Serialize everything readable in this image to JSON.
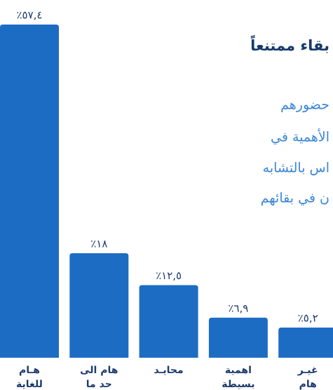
{
  "chart_data": {
    "type": "bar",
    "title": "بقاء ممتنعاً",
    "annotations": [
      "حضورهم",
      "الأهمية في",
      "اس بالتشابه",
      "ن في بقائهم"
    ],
    "categories": [
      [
        "هـام",
        "للغاية"
      ],
      [
        "هام الى",
        "حد ما"
      ],
      [
        "محايـد"
      ],
      [
        "اهمية",
        "بسيطة"
      ],
      [
        "غيـر",
        "هام"
      ]
    ],
    "values": [
      57.4,
      18,
      12.5,
      6.9,
      5.2
    ],
    "value_labels": [
      "٪٥٧,٤",
      "٪١٨",
      "٪١٢,٥",
      "٪٦,٩",
      "٪٥,٢"
    ],
    "color": "#1d6cc4"
  }
}
